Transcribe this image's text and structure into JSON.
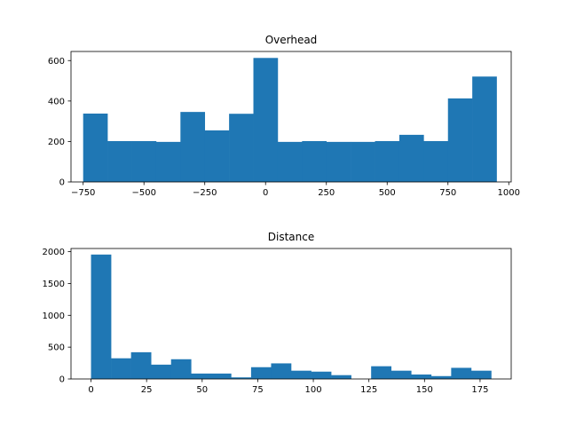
{
  "chart_data": [
    {
      "type": "bar",
      "title": "Overhead",
      "xlabel": "",
      "ylabel": "",
      "xlim": [
        -800,
        1010
      ],
      "ylim": [
        0,
        645
      ],
      "xticks": [
        -750,
        -500,
        -250,
        0,
        250,
        500,
        750,
        1000
      ],
      "xtick_labels": [
        "−750",
        "−500",
        "−250",
        "0",
        "250",
        "500",
        "750",
        "1000"
      ],
      "yticks": [
        0,
        200,
        400,
        600
      ],
      "ytick_labels": [
        "0",
        "200",
        "400",
        "600"
      ],
      "bin_edges": [
        -750,
        -650,
        -550,
        -450,
        -350,
        -250,
        -150,
        -50,
        50,
        150,
        250,
        350,
        450,
        550,
        650,
        750,
        850,
        950
      ],
      "values": [
        338,
        202,
        202,
        198,
        346,
        255,
        337,
        613,
        198,
        202,
        198,
        198,
        202,
        233,
        202,
        413,
        521
      ],
      "color": "#1f77b4",
      "grid": false
    },
    {
      "type": "bar",
      "title": "Distance",
      "xlabel": "",
      "ylabel": "",
      "xlim": [
        -9,
        189
      ],
      "ylim": [
        0,
        2050
      ],
      "xticks": [
        0,
        25,
        50,
        75,
        100,
        125,
        150,
        175
      ],
      "xtick_labels": [
        "0",
        "25",
        "50",
        "75",
        "100",
        "125",
        "150",
        "175"
      ],
      "yticks": [
        0,
        500,
        1000,
        1500,
        2000
      ],
      "ytick_labels": [
        "0",
        "500",
        "1000",
        "1500",
        "2000"
      ],
      "bin_edges": [
        0,
        9,
        18,
        27,
        36,
        45,
        54,
        63,
        72,
        81,
        90,
        99,
        108,
        117,
        126,
        135,
        144,
        153,
        162,
        171,
        180
      ],
      "values": [
        1955,
        325,
        420,
        225,
        310,
        85,
        85,
        25,
        185,
        245,
        130,
        115,
        60,
        0,
        200,
        130,
        70,
        45,
        175,
        130
      ],
      "color": "#1f77b4",
      "grid": false
    }
  ]
}
